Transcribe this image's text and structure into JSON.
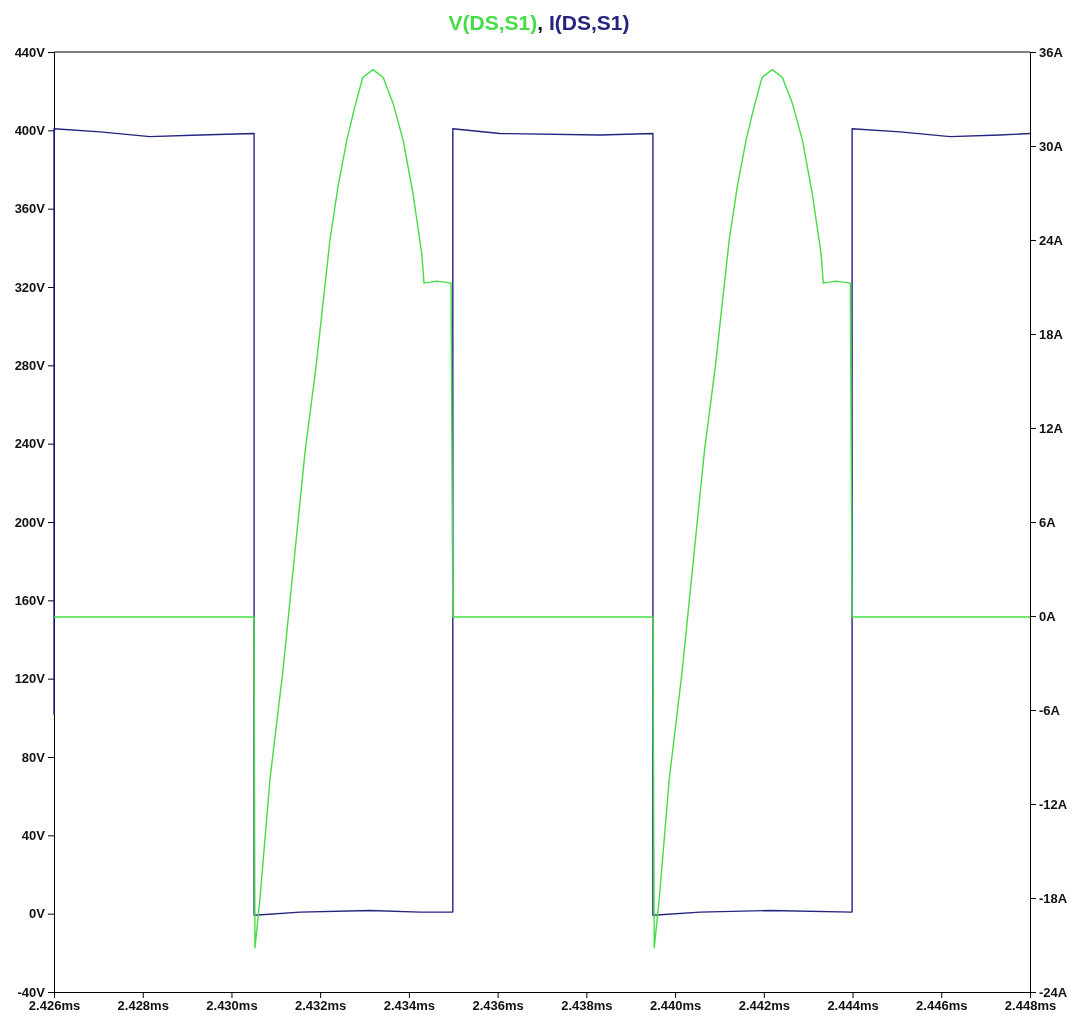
{
  "chart_data": {
    "type": "line",
    "legend": "top",
    "annotations": [
      ","
    ],
    "marker": "none",
    "line_style": "solid",
    "grid": false,
    "xlim": [
      2.426,
      2.448
    ],
    "xticks": [
      {
        "value": 2.426,
        "label": "2.426ms"
      },
      {
        "value": 2.428,
        "label": "2.428ms"
      },
      {
        "value": 2.43,
        "label": "2.430ms"
      },
      {
        "value": 2.432,
        "label": "2.432ms"
      },
      {
        "value": 2.434,
        "label": "2.434ms"
      },
      {
        "value": 2.436,
        "label": "2.436ms"
      },
      {
        "value": 2.438,
        "label": "2.438ms"
      },
      {
        "value": 2.44,
        "label": "2.440ms"
      },
      {
        "value": 2.442,
        "label": "2.442ms"
      },
      {
        "value": 2.444,
        "label": "2.444ms"
      },
      {
        "value": 2.446,
        "label": "2.446ms"
      },
      {
        "value": 2.448,
        "label": "2.448ms"
      }
    ],
    "ylim": [
      -40,
      440
    ],
    "yticks": [
      {
        "value": -40,
        "label": "-40V"
      },
      {
        "value": 0,
        "label": "0V"
      },
      {
        "value": 40,
        "label": "40V"
      },
      {
        "value": 80,
        "label": "80V"
      },
      {
        "value": 120,
        "label": "120V"
      },
      {
        "value": 160,
        "label": "160V"
      },
      {
        "value": 200,
        "label": "200V"
      },
      {
        "value": 240,
        "label": "240V"
      },
      {
        "value": 280,
        "label": "280V"
      },
      {
        "value": 320,
        "label": "320V"
      },
      {
        "value": 360,
        "label": "360V"
      },
      {
        "value": 400,
        "label": "400V"
      },
      {
        "value": 440,
        "label": "440V"
      }
    ],
    "y2lim": [
      -24,
      36
    ],
    "y2ticks": [
      {
        "value": -24,
        "label": "-24A"
      },
      {
        "value": -18,
        "label": "-18A"
      },
      {
        "value": -12,
        "label": "-12A"
      },
      {
        "value": -6,
        "label": "-6A"
      },
      {
        "value": 0,
        "label": "0A"
      },
      {
        "value": 6,
        "label": "6A"
      },
      {
        "value": 12,
        "label": "12A"
      },
      {
        "value": 18,
        "label": "18A"
      },
      {
        "value": 24,
        "label": "24A"
      },
      {
        "value": 30,
        "label": "30A"
      },
      {
        "value": 36,
        "label": "36A"
      }
    ],
    "series": [
      {
        "name": "V(DS,S1)",
        "color": "#44dd44",
        "x": [
          2.426,
          2.43051,
          2.43053,
          2.43064,
          2.43087,
          2.43116,
          2.43141,
          2.43166,
          2.43191,
          2.43222,
          2.4324,
          2.4326,
          2.43278,
          2.43296,
          2.43319,
          2.43342,
          2.43364,
          2.43387,
          2.43409,
          2.43429,
          2.43434,
          2.43463,
          2.43495,
          2.43499,
          2.4395,
          2.43953,
          2.43964,
          2.43987,
          2.44016,
          2.44041,
          2.44066,
          2.44091,
          2.44122,
          2.4414,
          2.4416,
          2.44178,
          2.44196,
          2.44219,
          2.44242,
          2.44264,
          2.44287,
          2.44309,
          2.44329,
          2.44334,
          2.44363,
          2.44395,
          2.44399,
          2.448
        ],
        "values": [
          151.5,
          151.5,
          -17.5,
          7,
          69,
          124,
          180,
          236,
          280,
          344,
          371,
          395,
          412,
          427,
          431,
          427,
          414,
          395,
          368,
          337,
          322,
          323,
          322,
          151.5,
          151.5,
          -17.5,
          7,
          69,
          124,
          180,
          236,
          280,
          344,
          371,
          395,
          412,
          427,
          431,
          427,
          414,
          395,
          368,
          337,
          322,
          323,
          322,
          151.5,
          151.5
        ]
      },
      {
        "name": "I(DS,S1)",
        "color": "#242480",
        "axis": "y2",
        "x": [
          2.426,
          2.426,
          2.42704,
          2.42816,
          2.42929,
          2.43051,
          2.43051,
          2.43155,
          2.43312,
          2.43425,
          2.43499,
          2.43499,
          2.43605,
          2.43831,
          2.4395,
          2.4395,
          2.44056,
          2.44214,
          2.44399,
          2.44399,
          2.44507,
          2.4462,
          2.44732,
          2.448
        ],
        "values": [
          -6.3,
          31.1,
          30.9,
          30.6,
          30.7,
          30.8,
          -19.1,
          -18.9,
          -18.8,
          -18.9,
          -18.9,
          31.1,
          30.8,
          30.7,
          30.8,
          -19.1,
          -18.9,
          -18.8,
          -18.9,
          31.1,
          30.9,
          30.6,
          30.7,
          30.8
        ]
      }
    ]
  }
}
